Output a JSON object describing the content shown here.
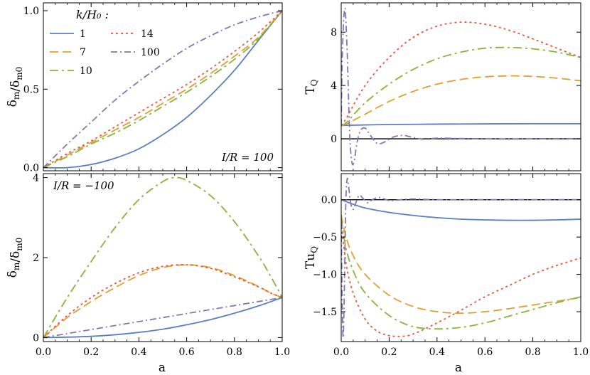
{
  "figure": {
    "shared_xlabel": "a",
    "legend_title": "k/H₀ :"
  },
  "colors": {
    "k1": "#5a7fbf",
    "k7": "#e0a030",
    "k10": "#86b43c",
    "k14": "#e8583a",
    "k100": "#8476b6",
    "zero_line": "#000000"
  },
  "chart_data": [
    {
      "type": "line",
      "panel": "top-left",
      "ylabel": "δ_m/δ_m0",
      "xlim": [
        0.0,
        1.0
      ],
      "ylim": [
        -0.02,
        1.05
      ],
      "xticks": [
        0.0,
        0.2,
        0.4,
        0.6,
        0.8,
        1.0
      ],
      "yticks": [
        0.0,
        0.5,
        1.0
      ],
      "ytick_labels": [
        "0.0",
        "0.5",
        "1.0"
      ],
      "annotation": "I/R = 100",
      "legend": {
        "title": "k/H₀ :",
        "placement": "top-left",
        "entries": [
          "1",
          "7",
          "10",
          "14",
          "100"
        ]
      },
      "series": [
        {
          "name": "1",
          "x": [
            0,
            0.1,
            0.2,
            0.3,
            0.4,
            0.5,
            0.6,
            0.7,
            0.8,
            0.9,
            1.0
          ],
          "y": [
            0.0,
            0.0,
            0.02,
            0.06,
            0.12,
            0.21,
            0.32,
            0.46,
            0.62,
            0.81,
            1.0
          ]
        },
        {
          "name": "7",
          "x": [
            0,
            0.1,
            0.2,
            0.3,
            0.4,
            0.5,
            0.6,
            0.7,
            0.8,
            0.9,
            1.0
          ],
          "y": [
            0.0,
            0.08,
            0.16,
            0.24,
            0.32,
            0.41,
            0.5,
            0.6,
            0.71,
            0.83,
            1.0
          ]
        },
        {
          "name": "10",
          "x": [
            0,
            0.1,
            0.2,
            0.3,
            0.4,
            0.5,
            0.6,
            0.7,
            0.8,
            0.9,
            1.0
          ],
          "y": [
            0.0,
            0.07,
            0.15,
            0.22,
            0.3,
            0.39,
            0.48,
            0.58,
            0.69,
            0.82,
            1.0
          ]
        },
        {
          "name": "14",
          "x": [
            0,
            0.1,
            0.2,
            0.3,
            0.4,
            0.5,
            0.6,
            0.7,
            0.8,
            0.9,
            1.0
          ],
          "y": [
            0.0,
            0.09,
            0.17,
            0.26,
            0.35,
            0.44,
            0.53,
            0.63,
            0.74,
            0.86,
            1.0
          ]
        },
        {
          "name": "100",
          "x": [
            0,
            0.1,
            0.2,
            0.3,
            0.4,
            0.5,
            0.6,
            0.7,
            0.8,
            0.9,
            1.0
          ],
          "y": [
            0.0,
            0.15,
            0.29,
            0.43,
            0.55,
            0.66,
            0.76,
            0.84,
            0.91,
            0.96,
            1.0
          ]
        }
      ]
    },
    {
      "type": "line",
      "panel": "top-right",
      "ylabel": "T_Q",
      "xlim": [
        0.0,
        1.0
      ],
      "ylim": [
        -2.4,
        10.2
      ],
      "xticks": [
        0.0,
        0.2,
        0.4,
        0.6,
        0.8,
        1.0
      ],
      "yticks": [
        0,
        4,
        8
      ],
      "ytick_labels": [
        "0",
        "4",
        "8"
      ],
      "zero_line": true,
      "series": [
        {
          "name": "1",
          "x": [
            0,
            0.1,
            0.2,
            0.4,
            0.6,
            0.8,
            1.0
          ],
          "y": [
            1.0,
            1.04,
            1.07,
            1.1,
            1.12,
            1.13,
            1.13
          ]
        },
        {
          "name": "7",
          "x": [
            0,
            0.02,
            0.1,
            0.2,
            0.3,
            0.4,
            0.5,
            0.6,
            0.7,
            0.8,
            0.9,
            1.0
          ],
          "y": [
            1.0,
            1.1,
            1.85,
            2.8,
            3.55,
            4.1,
            4.45,
            4.65,
            4.72,
            4.68,
            4.55,
            4.35
          ]
        },
        {
          "name": "10",
          "x": [
            0,
            0.02,
            0.1,
            0.2,
            0.3,
            0.4,
            0.5,
            0.6,
            0.7,
            0.8,
            0.9,
            1.0
          ],
          "y": [
            1.0,
            1.2,
            2.7,
            4.1,
            5.2,
            6.0,
            6.5,
            6.8,
            6.85,
            6.75,
            6.5,
            6.1
          ]
        },
        {
          "name": "14",
          "x": [
            0,
            0.02,
            0.1,
            0.2,
            0.3,
            0.4,
            0.5,
            0.6,
            0.7,
            0.8,
            0.9,
            1.0
          ],
          "y": [
            1.0,
            1.5,
            4.0,
            6.1,
            7.6,
            8.45,
            8.75,
            8.6,
            8.15,
            7.5,
            6.8,
            6.1
          ]
        },
        {
          "name": "100",
          "x": [
            0,
            0.005,
            0.015,
            0.025,
            0.035,
            0.045,
            0.055,
            0.065,
            0.08,
            0.1,
            0.12,
            0.15,
            0.18,
            0.22,
            0.26,
            0.3,
            0.35,
            0.4,
            0.5,
            0.6,
            0.7,
            0.8,
            0.9,
            1.0
          ],
          "y": [
            1.0,
            6.5,
            9.8,
            6.5,
            0.5,
            -1.8,
            -1.6,
            -0.4,
            0.6,
            0.8,
            0.3,
            -0.35,
            -0.25,
            0.15,
            0.25,
            0.1,
            -0.05,
            0.05,
            0.02,
            0.0,
            -0.02,
            0.0,
            0.01,
            0.0
          ]
        }
      ]
    },
    {
      "type": "line",
      "panel": "bottom-left",
      "ylabel": "δ_m/δ_m0",
      "xlabel": "a",
      "xlim": [
        0.0,
        1.0
      ],
      "ylim": [
        -0.1,
        4.1
      ],
      "xticks": [
        0.0,
        0.2,
        0.4,
        0.6,
        0.8,
        1.0
      ],
      "xtick_labels": [
        "0.0",
        "0.2",
        "0.4",
        "0.6",
        "0.8",
        "1.0"
      ],
      "yticks": [
        0,
        2,
        4
      ],
      "ytick_labels": [
        "0",
        "2",
        "4"
      ],
      "annotation": "I/R = −100",
      "series": [
        {
          "name": "1",
          "x": [
            0,
            0.1,
            0.2,
            0.3,
            0.4,
            0.5,
            0.6,
            0.7,
            0.8,
            0.9,
            1.0
          ],
          "y": [
            0.0,
            0.01,
            0.03,
            0.07,
            0.13,
            0.21,
            0.32,
            0.45,
            0.61,
            0.79,
            1.0
          ]
        },
        {
          "name": "7",
          "x": [
            0,
            0.1,
            0.2,
            0.3,
            0.4,
            0.5,
            0.6,
            0.7,
            0.8,
            0.9,
            0.95,
            1.0
          ],
          "y": [
            0.0,
            0.5,
            0.9,
            1.25,
            1.55,
            1.75,
            1.82,
            1.75,
            1.55,
            1.28,
            1.12,
            1.0
          ]
        },
        {
          "name": "10",
          "x": [
            0,
            0.1,
            0.2,
            0.3,
            0.4,
            0.5,
            0.55,
            0.6,
            0.7,
            0.8,
            0.9,
            0.95,
            1.0
          ],
          "y": [
            0.0,
            1.0,
            1.9,
            2.75,
            3.45,
            3.9,
            4.0,
            3.93,
            3.55,
            2.9,
            2.05,
            1.55,
            1.0
          ]
        },
        {
          "name": "14",
          "x": [
            0,
            0.1,
            0.2,
            0.3,
            0.4,
            0.5,
            0.6,
            0.7,
            0.8,
            0.9,
            0.95,
            1.0
          ],
          "y": [
            0.0,
            0.55,
            1.0,
            1.35,
            1.62,
            1.78,
            1.82,
            1.73,
            1.52,
            1.27,
            1.12,
            1.0
          ]
        },
        {
          "name": "100",
          "x": [
            0,
            0.1,
            0.2,
            0.3,
            0.4,
            0.5,
            0.6,
            0.7,
            0.8,
            0.9,
            1.0
          ],
          "y": [
            0.0,
            0.1,
            0.2,
            0.3,
            0.4,
            0.5,
            0.6,
            0.7,
            0.8,
            0.9,
            1.0
          ]
        }
      ]
    },
    {
      "type": "line",
      "panel": "bottom-right",
      "ylabel": "Tu_Q",
      "xlabel": "a",
      "xlim": [
        0.0,
        1.0
      ],
      "ylim": [
        -1.9,
        0.35
      ],
      "xticks": [
        0.0,
        0.2,
        0.4,
        0.6,
        0.8,
        1.0
      ],
      "xtick_labels": [
        "0.0",
        "0.2",
        "0.4",
        "0.6",
        "0.8",
        "1.0"
      ],
      "yticks": [
        0.0,
        -0.5,
        -1.0,
        -1.5
      ],
      "ytick_labels": [
        "0.0",
        "−0.5",
        "−1.0",
        "−1.5"
      ],
      "zero_line": true,
      "series": [
        {
          "name": "1",
          "x": [
            0,
            0.05,
            0.1,
            0.2,
            0.3,
            0.4,
            0.5,
            0.6,
            0.7,
            0.8,
            0.9,
            1.0
          ],
          "y": [
            0.0,
            -0.06,
            -0.11,
            -0.17,
            -0.21,
            -0.24,
            -0.26,
            -0.27,
            -0.275,
            -0.275,
            -0.27,
            -0.26
          ]
        },
        {
          "name": "7",
          "x": [
            0,
            0.02,
            0.05,
            0.1,
            0.2,
            0.3,
            0.4,
            0.5,
            0.6,
            0.7,
            0.8,
            0.9,
            1.0
          ],
          "y": [
            -0.2,
            -0.5,
            -0.75,
            -1.0,
            -1.28,
            -1.43,
            -1.5,
            -1.52,
            -1.5,
            -1.46,
            -1.41,
            -1.36,
            -1.31
          ]
        },
        {
          "name": "10",
          "x": [
            0,
            0.02,
            0.05,
            0.1,
            0.2,
            0.3,
            0.4,
            0.5,
            0.6,
            0.7,
            0.8,
            0.9,
            1.0
          ],
          "y": [
            -0.25,
            -0.65,
            -0.95,
            -1.25,
            -1.55,
            -1.7,
            -1.73,
            -1.71,
            -1.65,
            -1.56,
            -1.47,
            -1.38,
            -1.3
          ]
        },
        {
          "name": "14",
          "x": [
            0,
            0.02,
            0.05,
            0.1,
            0.15,
            0.2,
            0.25,
            0.3,
            0.4,
            0.5,
            0.6,
            0.7,
            0.8,
            0.9,
            1.0
          ],
          "y": [
            -0.3,
            -0.85,
            -1.25,
            -1.6,
            -1.76,
            -1.82,
            -1.83,
            -1.8,
            -1.65,
            -1.48,
            -1.3,
            -1.15,
            -1.0,
            -0.88,
            -0.78
          ]
        },
        {
          "name": "100",
          "x": [
            0,
            0.004,
            0.008,
            0.012,
            0.016,
            0.02,
            0.025,
            0.03,
            0.04,
            0.05,
            0.06,
            0.075,
            0.09,
            0.11,
            0.13,
            0.16,
            0.2,
            0.25,
            0.3,
            0.4,
            0.5,
            0.6,
            0.8,
            1.0
          ],
          "y": [
            -0.3,
            -1.35,
            -1.85,
            -1.4,
            -0.6,
            0.05,
            0.28,
            0.2,
            -0.05,
            -0.13,
            -0.05,
            0.06,
            0.02,
            -0.04,
            0.0,
            0.03,
            -0.01,
            0.0,
            0.01,
            0.0,
            0.0,
            0.0,
            0.0,
            0.0
          ]
        }
      ]
    }
  ]
}
